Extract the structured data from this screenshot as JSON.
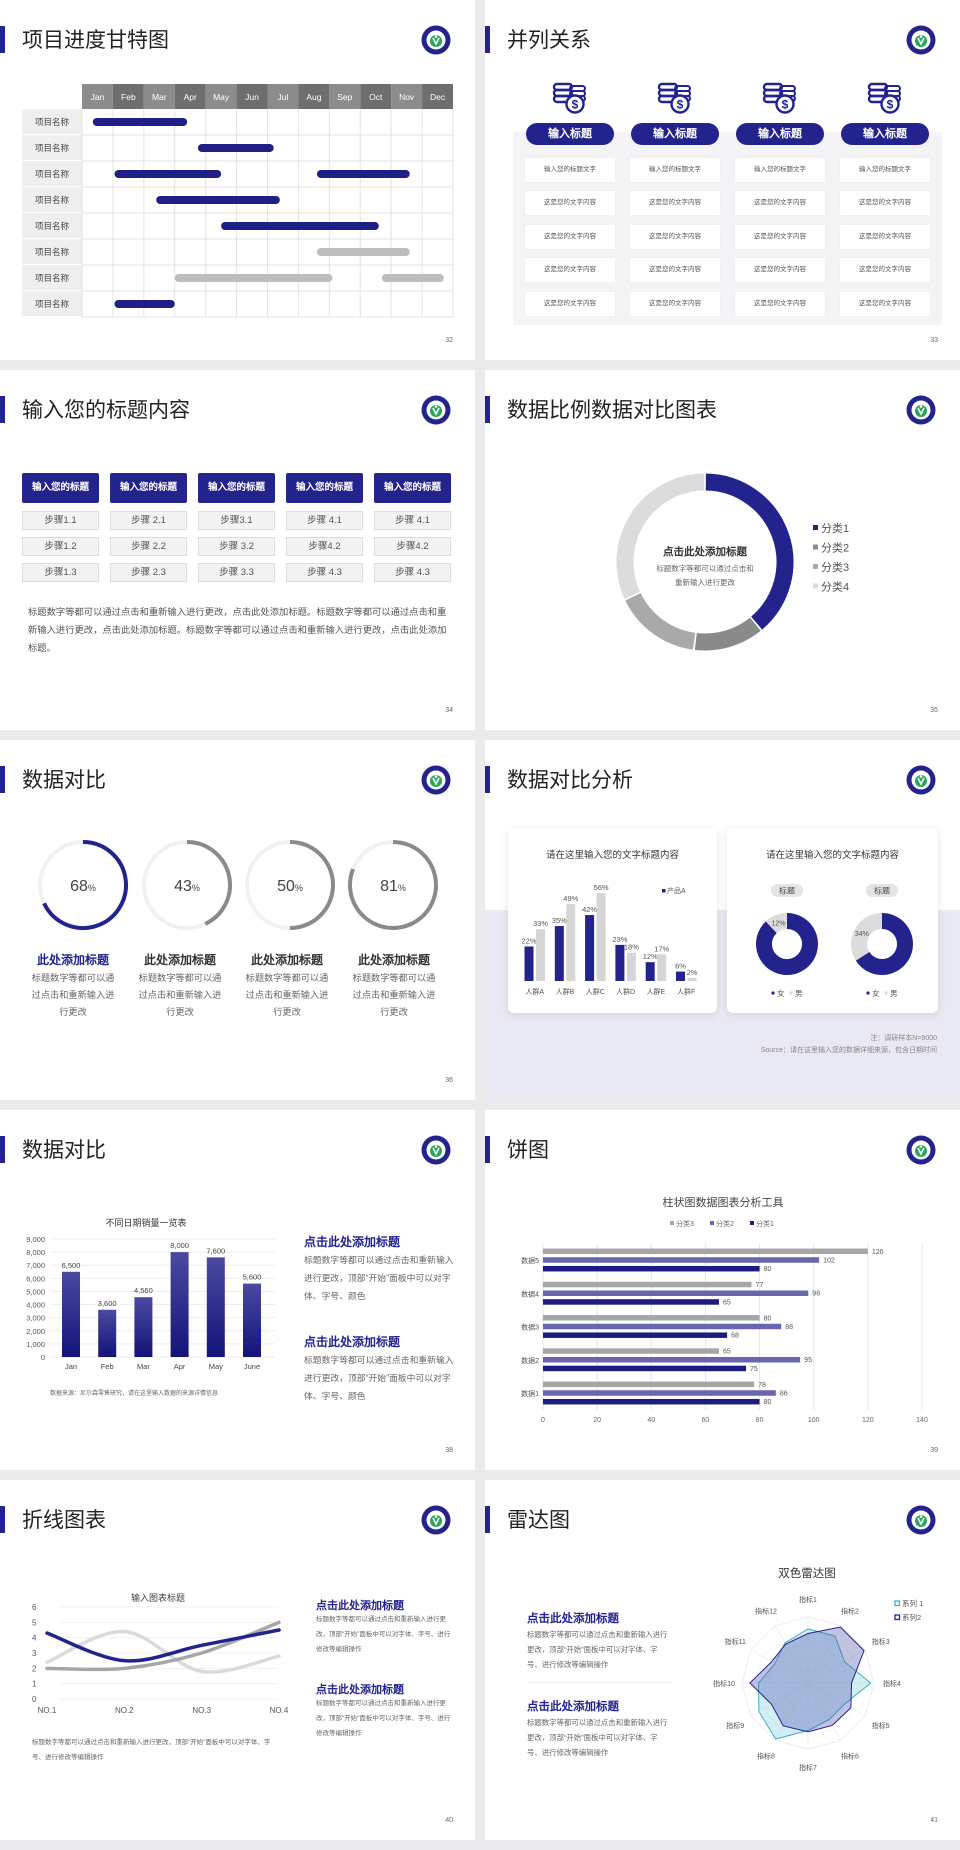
{
  "colors": {
    "primary": "#23238e",
    "gray": "#b9b9b9",
    "accent_cyan": "#3bb0c9"
  },
  "logo": {
    "icon": "school-emblem-logo"
  },
  "slides": [
    {
      "title": "项目进度甘特图",
      "page": "32",
      "chart_data": {
        "type": "gantt",
        "months": [
          "Jan",
          "Feb",
          "Mar",
          "Apr",
          "May",
          "Jun",
          "Jul",
          "Aug",
          "Sep",
          "Oct",
          "Nov",
          "Dec"
        ],
        "rows": [
          "项目名称",
          "项目名称",
          "项目名称",
          "项目名称",
          "项目名称",
          "项目名称",
          "项目名称",
          "项目名称"
        ],
        "bars": [
          {
            "row": 0,
            "start": 0.35,
            "end": 3.4,
            "color": "primary"
          },
          {
            "row": 1,
            "start": 3.75,
            "end": 6.2,
            "color": "primary"
          },
          {
            "row": 2,
            "start": 1.05,
            "end": 4.5,
            "color": "primary"
          },
          {
            "row": 2,
            "start": 7.6,
            "end": 10.6,
            "color": "primary"
          },
          {
            "row": 3,
            "start": 2.4,
            "end": 6.4,
            "color": "primary"
          },
          {
            "row": 4,
            "start": 4.5,
            "end": 9.6,
            "color": "primary"
          },
          {
            "row": 5,
            "start": 7.6,
            "end": 10.6,
            "color": "gray"
          },
          {
            "row": 6,
            "start": 3.0,
            "end": 8.1,
            "color": "gray"
          },
          {
            "row": 6,
            "start": 9.7,
            "end": 11.7,
            "color": "gray"
          },
          {
            "row": 7,
            "start": 1.05,
            "end": 3.0,
            "color": "primary"
          }
        ]
      }
    },
    {
      "title": "并列关系",
      "page": "33",
      "icon": "coins-dollar-icon",
      "columns": [
        {
          "title": "输入标题",
          "items": [
            "输入您的标题文字",
            "这是您的文字内容",
            "这是您的文字内容",
            "这是您的文字内容",
            "这是您的文字内容"
          ]
        },
        {
          "title": "输入标题",
          "items": [
            "输入您的标题文字",
            "这是您的文字内容",
            "这是您的文字内容",
            "这是您的文字内容",
            "这是您的文字内容"
          ]
        },
        {
          "title": "输入标题",
          "items": [
            "输入您的标题文字",
            "这是您的文字内容",
            "这是您的文字内容",
            "这是您的文字内容",
            "这是您的文字内容"
          ]
        },
        {
          "title": "输入标题",
          "items": [
            "输入您的标题文字",
            "这是您的文字内容",
            "这是您的文字内容",
            "这是您的文字内容",
            "这是您的文字内容"
          ]
        }
      ]
    },
    {
      "title": "输入您的标题内容",
      "page": "34",
      "columns": [
        {
          "header": "输入您的标题",
          "steps": [
            "步骤1.1",
            "步骤1.2",
            "步骤1.3"
          ]
        },
        {
          "header": "输入您的标题",
          "steps": [
            "步骤 2.1",
            "步骤 2.2",
            "步骤 2.3"
          ]
        },
        {
          "header": "输入您的标题",
          "steps": [
            "步骤3.1",
            "步骤 3.2",
            "步骤 3.3"
          ]
        },
        {
          "header": "输入您的标题",
          "steps": [
            "步骤 4.1",
            "步骤4.2",
            "步骤 4.3"
          ]
        },
        {
          "header": "输入您的标题",
          "steps": [
            "步骤 4.1",
            "步骤4.2",
            "步骤 4.3"
          ]
        }
      ],
      "paragraph": "标题数字等都可以通过点击和重新输入进行更改，点击此处添加标题。标题数字等都可以通过点击和重新输入进行更改，点击此处添加标题。标题数字等都可以通过点击和重新输入进行更改，点击此处添加标题。"
    },
    {
      "title": "数据比例数据对比图表",
      "page": "35",
      "center_title": "点击此处添加标题",
      "center_line1": "标题数字等都可以通过点击和",
      "center_line2": "重新输入进行更改",
      "chart_data": {
        "type": "pie",
        "donut": true,
        "categories": [
          "分类1",
          "分类2",
          "分类3",
          "分类4"
        ],
        "values": [
          39,
          13,
          16,
          32
        ],
        "colors": [
          "#23238e",
          "#8a8a8a",
          "#a9a9a9",
          "#dcdcdc"
        ],
        "legend": "right"
      }
    },
    {
      "title": "数据对比",
      "page": "36",
      "items": [
        {
          "value": "68",
          "unit": "%",
          "pct": 68,
          "color": "#23238e",
          "title": "此处添加标题",
          "desc": "标题数字等都可以通过点击和重新输入进行更改"
        },
        {
          "value": "43",
          "unit": "%",
          "pct": 43,
          "color": "#8a8a8a",
          "title": "此处添加标题",
          "desc": "标题数字等都可以通过点击和重新输入进行更改"
        },
        {
          "value": "50",
          "unit": "%",
          "pct": 50,
          "color": "#8a8a8a",
          "title": "此处添加标题",
          "desc": "标题数字等都可以通过点击和重新输入进行更改"
        },
        {
          "value": "81",
          "unit": "%",
          "pct": 81,
          "color": "#8a8a8a",
          "title": "此处添加标题",
          "desc": "标题数字等都可以通过点击和重新输入进行更改"
        }
      ]
    },
    {
      "title": "数据对比分析",
      "page": "37",
      "card1_title": "请在这里输入您的文字标题内容",
      "card2_title": "请在这里输入您的文字标题内容",
      "chart_data": [
        {
          "type": "bar",
          "categories": [
            "人群A",
            "人群B",
            "人群C",
            "人群D",
            "人群E",
            "人群F"
          ],
          "series": [
            {
              "name": "产品A",
              "values": [
                22,
                35,
                42,
                23,
                12,
                6
              ],
              "color": "#23238e"
            },
            {
              "values": [
                33,
                49,
                56,
                18,
                17,
                2
              ],
              "color": "#d6d6d6"
            }
          ],
          "unit": "%",
          "legend": "top-right"
        },
        {
          "type": "pie",
          "donut": true,
          "label": "标题",
          "categories": [
            "女",
            "男"
          ],
          "values": [
            88,
            12
          ],
          "shown_labels": [
            "88%",
            "12%"
          ]
        },
        {
          "type": "pie",
          "donut": true,
          "label": "标题",
          "categories": [
            "女",
            "男"
          ],
          "values": [
            66,
            34
          ],
          "shown_labels": [
            "66%",
            "34%"
          ]
        }
      ],
      "note": "注：调研样本N=9000",
      "source": "Source：请在这里输入您的数据详细来源，包含日期时间"
    },
    {
      "title": "数据对比",
      "page": "38",
      "chart_data": {
        "type": "bar",
        "title": "不同日期销量一览表",
        "categories": [
          "Jan",
          "Feb",
          "Mar",
          "Apr",
          "May",
          "June"
        ],
        "values": [
          6500,
          3600,
          4560,
          8000,
          7600,
          5600
        ],
        "labels": [
          "6,500",
          "3,600",
          "4,560",
          "8,000",
          "7,600",
          "5,600"
        ],
        "yticks": [
          "0",
          "1,000",
          "2,000",
          "3,000",
          "4,000",
          "5,000",
          "6,000",
          "7,000",
          "8,000",
          "9,000"
        ],
        "ylim": [
          0,
          9000
        ],
        "grid": true
      },
      "source": "数据来源：尼尔森零售研究，请在这里输入数据的来源详情信息",
      "blocks": [
        {
          "title": "点击此处添加标题",
          "desc": "标题数字等都可以通过点击和重新输入进行更改，顶部“开始”面板中可以对字体、字号、颜色"
        },
        {
          "title": "点击此处添加标题",
          "desc": "标题数字等都可以通过点击和重新输入进行更改，顶部“开始”面板中可以对字体、字号、颜色"
        }
      ]
    },
    {
      "title": "饼图",
      "page": "39",
      "chart_data": {
        "type": "bar",
        "orientation": "horizontal",
        "title": "柱状图数据图表分析工具",
        "categories": [
          "数据1",
          "数据2",
          "数据3",
          "数据4",
          "数据5"
        ],
        "series": [
          {
            "name": "分类3",
            "values": [
              78,
              65,
              80,
              77,
              120
            ],
            "color": "#a6a6a6"
          },
          {
            "name": "分类2",
            "values": [
              86,
              95,
              88,
              98,
              102
            ],
            "color": "#6767b0"
          },
          {
            "name": "分类1",
            "values": [
              80,
              75,
              68,
              65,
              80
            ],
            "color": "#1b1b80"
          }
        ],
        "xticks": [
          "0",
          "20",
          "40",
          "60",
          "80",
          "100",
          "120",
          "140"
        ],
        "xlim": [
          0,
          140
        ],
        "legend": "top",
        "grid": true
      }
    },
    {
      "title": "折线图表",
      "page": "40",
      "chart_data": {
        "type": "line",
        "title": "输入图表标题",
        "categories": [
          "NO.1",
          "NO.2",
          "NO.3",
          "NO.4"
        ],
        "series": [
          {
            "values": [
              4.3,
              2.5,
              3.5,
              4.5
            ],
            "color": "#23238e"
          },
          {
            "values": [
              2.4,
              4.4,
              1.8,
              2.8
            ],
            "color": "#dadada"
          },
          {
            "values": [
              2,
              2,
              3,
              5
            ],
            "color": "#a6a6a6"
          }
        ],
        "yticks": [
          "0",
          "1",
          "2",
          "3",
          "4",
          "5",
          "6"
        ],
        "ylim": [
          0,
          6
        ],
        "grid": true
      },
      "bottom_text": "标题数字等都可以通过点击和重新输入进行更改，顶部“开始”面板中可以对字体、字号、进行修改等编辑操作",
      "blocks": [
        {
          "title": "点击此处添加标题",
          "desc": "标题数字等都可以通过点击和重新输入进行更改，顶部“开始”面板中可以对字体、字号、进行修改等编辑操作"
        },
        {
          "title": "点击此处添加标题",
          "desc": "标题数字等都可以通过点击和重新输入进行更改，顶部“开始”面板中可以对字体、字号、进行修改等编辑操作"
        }
      ]
    },
    {
      "title": "雷达图",
      "page": "41",
      "chart_data": {
        "type": "radar",
        "title": "双色雷达图",
        "categories": [
          "指标1",
          "指标2",
          "指标3",
          "指标4",
          "指标5",
          "指标6",
          "指标7",
          "指标8",
          "指标9",
          "指标10",
          "指标11",
          "指标12"
        ],
        "series": [
          {
            "name": "系列 1",
            "values": [
              4.1,
              4.1,
              3.2,
              4.75,
              3.2,
              3.2,
              3.6,
              4.9,
              4.3,
              3.75,
              2.9,
              3.5
            ],
            "color": "#3bb0c9"
          },
          {
            "name": "系列2",
            "values": [
              3.75,
              4.9,
              4.9,
              3.3,
              3.75,
              3.7,
              3.7,
              3.75,
              3.2,
              4.4,
              3.2,
              3.4
            ],
            "color": "#23238e"
          }
        ],
        "rmax": 5,
        "legend": "top-right"
      },
      "blocks": [
        {
          "title": "点击此处添加标题",
          "desc": "标题数字等都可以通过点击和重新输入进行更改，顶部“开始”面板中可以对字体、字号、进行修改等编辑操作"
        },
        {
          "title": "点击此处添加标题",
          "desc": "标题数字等都可以通过点击和重新输入进行更改，顶部“开始”面板中可以对字体、字号、进行修改等编辑操作"
        }
      ]
    }
  ]
}
